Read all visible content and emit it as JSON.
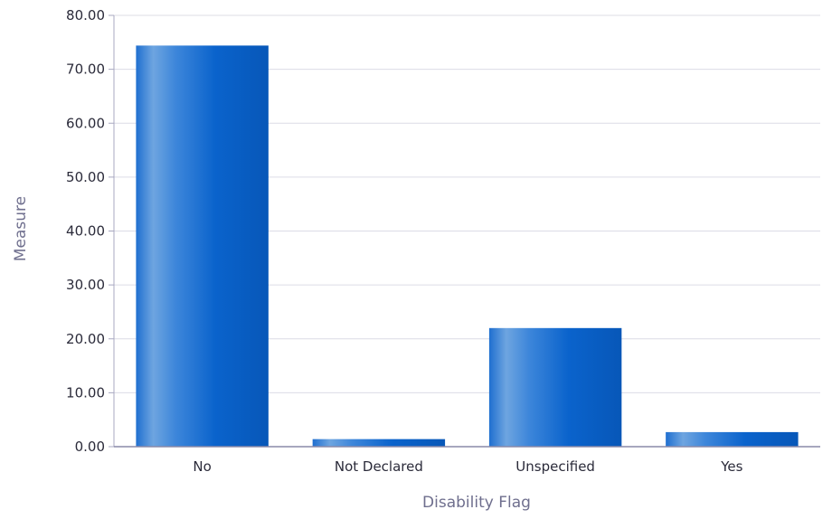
{
  "chart_data": {
    "type": "bar",
    "xlabel": "Disability Flag",
    "ylabel": "Measure",
    "categories": [
      "No",
      "Not Declared",
      "Unspecified",
      "Yes"
    ],
    "values": [
      74.4,
      1.4,
      22.0,
      2.7
    ],
    "ylim": [
      0,
      80
    ],
    "y_ticks": [
      "0.00",
      "10.00",
      "20.00",
      "30.00",
      "40.00",
      "50.00",
      "60.00",
      "70.00",
      "80.00"
    ],
    "grid": true,
    "legend": "none",
    "bar_color": "#0a63cc",
    "bar_highlight": "#6ea5e0"
  }
}
